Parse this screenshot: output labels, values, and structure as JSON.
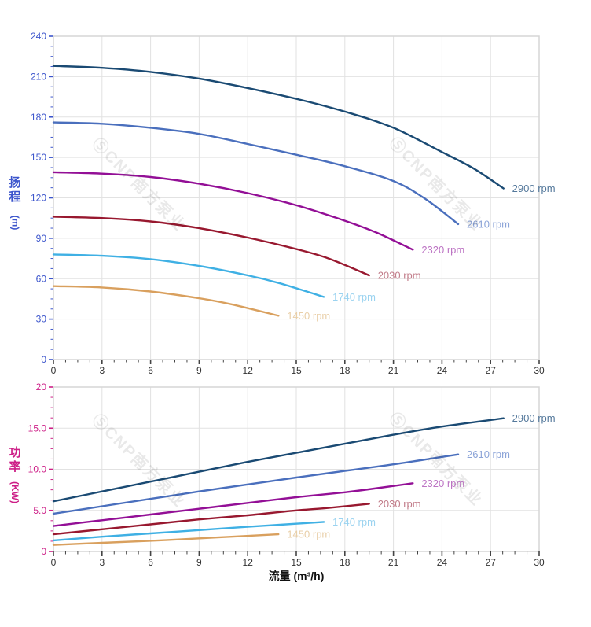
{
  "watermark": {
    "text": "ⓈCNP南方泵业"
  },
  "colors": {
    "grid": "#e2e2e2",
    "border": "#d6d6d6",
    "x_tick": "#444444",
    "x_tick_label": "#333333",
    "head_axis": "#3c55cc",
    "power_axis": "#cd1f87"
  },
  "chart_data": [
    {
      "type": "line",
      "id": "head-curve-chart",
      "title": "",
      "ylabel": "扬程",
      "ylabel_unit": "(m)",
      "xlabel": "",
      "xlim": [
        0,
        30
      ],
      "ylim": [
        0,
        240
      ],
      "xticks": [
        0,
        3,
        6,
        9,
        12,
        15,
        18,
        21,
        24,
        27,
        30
      ],
      "xtick_labels": [
        "0",
        "3",
        "6",
        "9",
        "12",
        "15",
        "18",
        "21",
        "24",
        "27",
        "30"
      ],
      "yticks": [
        0,
        30,
        60,
        90,
        120,
        150,
        180,
        210,
        240
      ],
      "ytick_labels": [
        "0",
        "30",
        "60",
        "90",
        "120",
        "150",
        "180",
        "210",
        "240"
      ],
      "x_minor_step": 0.75,
      "y_minor_step": 7.5,
      "grid": true,
      "axis_color": "#3c55cc",
      "legend_position": "curve-end-labels",
      "series": [
        {
          "name": "2900 rpm",
          "color": "#1a4a73",
          "label_color": "#54789b",
          "x": [
            0,
            3,
            6,
            9,
            12,
            15,
            18,
            21,
            24,
            26,
            27.8
          ],
          "y": [
            218,
            216.5,
            213.5,
            208.5,
            201.5,
            193.5,
            184,
            172,
            154,
            141.5,
            127
          ]
        },
        {
          "name": "2610 rpm",
          "color": "#4a6fbd",
          "label_color": "#8ca4d8",
          "x": [
            0,
            3,
            6,
            9,
            12,
            15,
            18,
            21,
            23,
            25
          ],
          "y": [
            176,
            175,
            172,
            167.5,
            160,
            152,
            143.5,
            132.5,
            119,
            100.5
          ]
        },
        {
          "name": "2320 rpm",
          "color": "#930f96",
          "label_color": "#bd74c4",
          "x": [
            0,
            3,
            6,
            9,
            12,
            15,
            18,
            20,
            22.2
          ],
          "y": [
            139,
            138,
            135.5,
            130.5,
            123.5,
            114.5,
            103,
            94,
            81.5
          ]
        },
        {
          "name": "2030 rpm",
          "color": "#98182f",
          "label_color": "#c27d8a",
          "x": [
            0,
            3,
            6,
            9,
            12,
            15,
            17,
            19.5
          ],
          "y": [
            106,
            105,
            102.5,
            97.5,
            90.5,
            82,
            75,
            62.5
          ]
        },
        {
          "name": "1740 rpm",
          "color": "#3fb0e4",
          "label_color": "#9bd3f0",
          "x": [
            0,
            3,
            6,
            9,
            12,
            14,
            16.7
          ],
          "y": [
            78,
            77,
            74.5,
            69.5,
            62.5,
            56.5,
            46.5
          ]
        },
        {
          "name": "1450 rpm",
          "color": "#d9a05e",
          "label_color": "#e9cfa8",
          "x": [
            0,
            3,
            6,
            9,
            11,
            13.9
          ],
          "y": [
            54.5,
            53.5,
            50.5,
            45.5,
            41,
            32.5
          ]
        }
      ]
    },
    {
      "type": "line",
      "id": "power-curve-chart",
      "title": "",
      "ylabel": "功率",
      "ylabel_unit": "(KW)",
      "xlabel": "流量 (m³/h)",
      "xlim": [
        0,
        30
      ],
      "ylim": [
        0,
        20
      ],
      "xticks": [
        0,
        3,
        6,
        9,
        12,
        15,
        18,
        21,
        24,
        27,
        30
      ],
      "xtick_labels": [
        "0",
        "3",
        "6",
        "9",
        "12",
        "15",
        "18",
        "21",
        "24",
        "27",
        "30"
      ],
      "yticks": [
        0,
        5,
        10,
        15,
        20
      ],
      "ytick_labels": [
        "0",
        "5.0",
        "10.0",
        "15.0",
        "20"
      ],
      "x_minor_step": 0.75,
      "y_minor_step": 1.25,
      "grid": true,
      "axis_color": "#cd1f87",
      "legend_position": "curve-end-labels",
      "series": [
        {
          "name": "2900 rpm",
          "color": "#1a4a73",
          "label_color": "#54789b",
          "x": [
            0,
            3,
            6,
            9,
            12,
            15,
            18,
            21,
            24,
            27.8
          ],
          "y": [
            6.1,
            7.3,
            8.5,
            9.7,
            10.9,
            12.0,
            13.1,
            14.2,
            15.2,
            16.2
          ]
        },
        {
          "name": "2610 rpm",
          "color": "#4a6fbd",
          "label_color": "#8ca4d8",
          "x": [
            0,
            3,
            6,
            9,
            12,
            15,
            18,
            21,
            24,
            25
          ],
          "y": [
            4.6,
            5.5,
            6.4,
            7.3,
            8.15,
            9.0,
            9.8,
            10.6,
            11.5,
            11.8
          ]
        },
        {
          "name": "2320 rpm",
          "color": "#930f96",
          "label_color": "#bd74c4",
          "x": [
            0,
            3,
            6,
            9,
            12,
            15,
            18,
            20,
            22.2
          ],
          "y": [
            3.1,
            3.8,
            4.5,
            5.2,
            5.9,
            6.6,
            7.2,
            7.7,
            8.3
          ]
        },
        {
          "name": "2030 rpm",
          "color": "#98182f",
          "label_color": "#c27d8a",
          "x": [
            0,
            3,
            6,
            9,
            12,
            15,
            17,
            19.5
          ],
          "y": [
            2.1,
            2.7,
            3.3,
            3.9,
            4.4,
            5.0,
            5.3,
            5.8
          ]
        },
        {
          "name": "1740 rpm",
          "color": "#3fb0e4",
          "label_color": "#9bd3f0",
          "x": [
            0,
            3,
            6,
            9,
            12,
            14,
            16.7
          ],
          "y": [
            1.35,
            1.8,
            2.2,
            2.6,
            3.0,
            3.25,
            3.6
          ]
        },
        {
          "name": "1450 rpm",
          "color": "#d9a05e",
          "label_color": "#e9cfa8",
          "x": [
            0,
            3,
            6,
            9,
            11,
            13.9
          ],
          "y": [
            0.8,
            1.05,
            1.3,
            1.6,
            1.8,
            2.1
          ]
        }
      ]
    }
  ]
}
